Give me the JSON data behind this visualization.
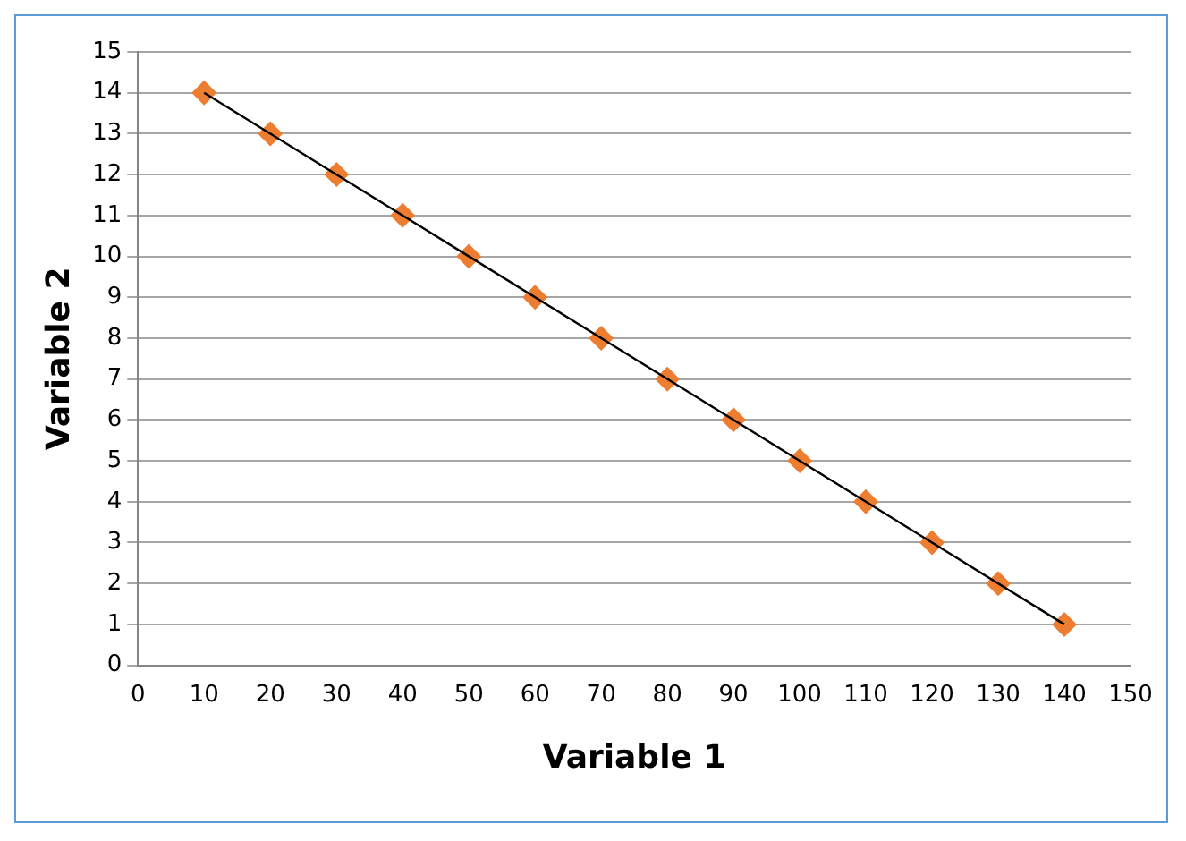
{
  "chart_data": {
    "type": "scatter",
    "xlabel": "Variable 1",
    "ylabel": "Variable 2",
    "x": [
      10,
      20,
      30,
      40,
      50,
      60,
      70,
      80,
      90,
      100,
      110,
      120,
      130,
      140
    ],
    "series": [
      {
        "type": "scatter",
        "color": "#ed7d31",
        "marker": "diamond",
        "values": [
          14,
          13,
          12,
          11,
          10,
          9,
          8,
          7,
          6,
          5,
          4,
          3,
          2,
          1
        ]
      },
      {
        "type": "line",
        "color": "#000000",
        "marker": "none",
        "line_style": "solid",
        "x": [
          10,
          140
        ],
        "values": [
          14,
          1
        ]
      }
    ],
    "xlim": [
      0,
      150
    ],
    "xticks": [
      0,
      10,
      20,
      30,
      40,
      50,
      60,
      70,
      80,
      90,
      100,
      110,
      120,
      130,
      140,
      150
    ],
    "ylim": [
      0,
      15
    ],
    "yticks": [
      0,
      1,
      2,
      3,
      4,
      5,
      6,
      7,
      8,
      9,
      10,
      11,
      12,
      13,
      14,
      15
    ],
    "grid": "y",
    "legend": false
  }
}
